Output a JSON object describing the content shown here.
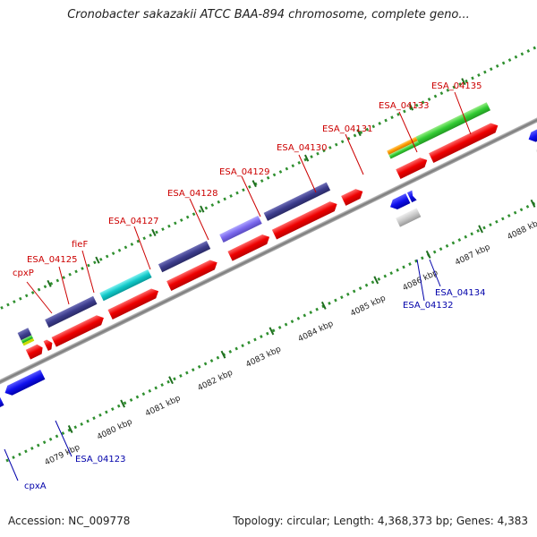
{
  "title": "Cronobacter sakazakii ATCC BAA-894 chromosome, complete geno...",
  "footer": {
    "accession": "Accession: NC_009778",
    "topology": "Topology: circular; Length: 4,368,373 bp; Genes: 4,383"
  },
  "colors": {
    "cds_red": "#ff0000",
    "cds_blue": "#0000ee",
    "cog_navy": "#3c3c8c",
    "cog_cyan": "#00c8c8",
    "cog_lavender": "#7b68ee",
    "cog_green": "#33cc33",
    "cog_orange": "#ff9900",
    "cog_yellow": "#ccdd00",
    "backbone": "#8c8c8c",
    "gc_dots": "#2f8f2f",
    "label_red": "#cc0000",
    "label_blue": "#0000aa"
  },
  "scale_labels": [
    "4079 kbp",
    "4080 kbp",
    "4081 kbp",
    "4082 kbp",
    "4083 kbp",
    "4084 kbp",
    "4085 kbp",
    "4086 kbp",
    "4087 kbp",
    "4088 kbp"
  ],
  "genes_forward": [
    "cpxP",
    "ESA_04125",
    "fieF",
    "ESA_04127",
    "ESA_04128",
    "ESA_04129",
    "ESA_04130",
    "ESA_04131",
    "ESA_04133",
    "ESA_04135"
  ],
  "genes_reverse": [
    "ESA_04123",
    "cpxA",
    "ESA_04132",
    "ESA_04134"
  ]
}
